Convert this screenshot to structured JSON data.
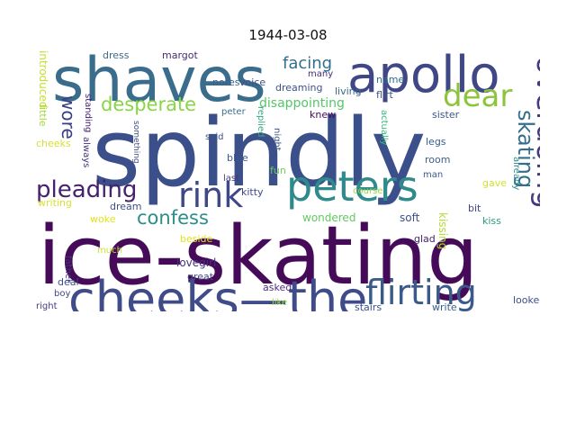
{
  "title": "1944-03-08",
  "words": [
    {
      "text": "spindly",
      "color": "#3b4f8a"
    },
    {
      "text": "ice-skating",
      "color": "#450b58"
    },
    {
      "text": "shaves",
      "color": "#3a6c8c"
    },
    {
      "text": "apollo",
      "color": "#3f4787"
    },
    {
      "text": "cheeks—the",
      "color": "#404c8a"
    },
    {
      "text": "peters",
      "color": "#2f8a8c"
    },
    {
      "text": "rink",
      "color": "#3f4886"
    },
    {
      "text": "flirting",
      "color": "#3a5a8c"
    },
    {
      "text": "dear",
      "color": "#8cc43a"
    },
    {
      "text": "overdoing",
      "color": "#423b7f"
    },
    {
      "text": "pleading",
      "color": "#47216b"
    },
    {
      "text": "skating",
      "color": "#356e8d"
    },
    {
      "text": "confess",
      "color": "#2a8e8a"
    },
    {
      "text": "desperate",
      "color": "#8ad545"
    },
    {
      "text": "wore",
      "color": "#3b3f82"
    },
    {
      "text": "facing",
      "color": "#2f6e8e"
    },
    {
      "text": "disappointing",
      "color": "#55c668"
    },
    {
      "text": "wondered",
      "color": "#62c962"
    },
    {
      "text": "dreaming",
      "color": "#3b5289"
    },
    {
      "text": "dress",
      "color": "#3b6a8c"
    },
    {
      "text": "margot",
      "color": "#452b73"
    },
    {
      "text": "notes",
      "color": "#3a5f8d"
    },
    {
      "text": "voice",
      "color": "#3d4e8b"
    },
    {
      "text": "many",
      "color": "#472e77"
    },
    {
      "text": "name",
      "color": "#2e6f8e"
    },
    {
      "text": "living",
      "color": "#3b678d"
    },
    {
      "text": "flirt",
      "color": "#3a5489"
    },
    {
      "text": "introduced",
      "color": "#c5de2c"
    },
    {
      "text": "little",
      "color": "#a2d93a"
    },
    {
      "text": "standing",
      "color": "#472376"
    },
    {
      "text": "peter",
      "color": "#3a6e8d"
    },
    {
      "text": "said",
      "color": "#3b548b"
    },
    {
      "text": "replied",
      "color": "#38a57c"
    },
    {
      "text": "knew",
      "color": "#470c5c"
    },
    {
      "text": "night",
      "color": "#3e5a8c"
    },
    {
      "text": "actually",
      "color": "#35b779"
    },
    {
      "text": "sister",
      "color": "#3a568b"
    },
    {
      "text": "dreamed",
      "color": "#3a4f8b"
    },
    {
      "text": "already",
      "color": "#2e8a8b"
    },
    {
      "text": "cheeks",
      "color": "#d6e22b"
    },
    {
      "text": "always",
      "color": "#46317a"
    },
    {
      "text": "something",
      "color": "#3f4b88"
    },
    {
      "text": "blue",
      "color": "#3b5a8c"
    },
    {
      "text": "last",
      "color": "#453a7a"
    },
    {
      "text": "man",
      "color": "#3a598c"
    },
    {
      "text": "legs",
      "color": "#345f8d"
    },
    {
      "text": "room",
      "color": "#3b5f8c"
    },
    {
      "text": "gave",
      "color": "#d4e22c"
    },
    {
      "text": "writing",
      "color": "#d8e22a"
    },
    {
      "text": "fun",
      "color": "#6ccd5a"
    },
    {
      "text": "kitty",
      "color": "#3f4989"
    },
    {
      "text": "course",
      "color": "#95d840"
    },
    {
      "text": "woke",
      "color": "#e1e41a"
    },
    {
      "text": "dream",
      "color": "#3b4f8a"
    },
    {
      "text": "bit",
      "color": "#414487"
    },
    {
      "text": "kiss",
      "color": "#2b9b82"
    },
    {
      "text": "father",
      "color": "#42397e"
    },
    {
      "text": "soft",
      "color": "#3c508b"
    },
    {
      "text": "kissing",
      "color": "#b0dd2f"
    },
    {
      "text": "beside",
      "color": "#e2e419"
    },
    {
      "text": "much",
      "color": "#c9df2a"
    },
    {
      "text": "lovegirl",
      "color": "#46347c"
    },
    {
      "text": "glad",
      "color": "#47216b"
    },
    {
      "text": "great",
      "color": "#3e4a89"
    },
    {
      "text": "deal",
      "color": "#3e4c8a"
    },
    {
      "text": "boy",
      "color": "#3f4788"
    },
    {
      "text": "asked",
      "color": "#4e2d84"
    },
    {
      "text": "right",
      "color": "#433d84"
    },
    {
      "text": "like",
      "color": "#9fda3a"
    },
    {
      "text": "stairs",
      "color": "#3a548b"
    },
    {
      "text": "write",
      "color": "#3a5e8c"
    },
    {
      "text": "looked",
      "color": "#3a4f8b"
    }
  ]
}
